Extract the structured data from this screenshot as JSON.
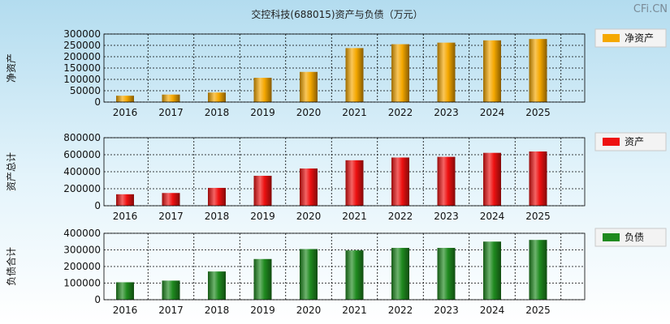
{
  "title": "交控科技(688015)资产与负债（万元）",
  "watermark": "CFi.CN",
  "colors": {
    "net_assets": "#f5a800",
    "total_assets": "#ee1111",
    "liabilities": "#1f8a1f"
  },
  "chart_data": [
    {
      "type": "bar",
      "id": "net-assets",
      "legend": "净资产",
      "ylabel": "净资产",
      "categories": [
        "2016",
        "2017",
        "2018",
        "2019",
        "2020",
        "2021",
        "2022",
        "2023",
        "2024",
        "2025"
      ],
      "values": [
        28000,
        33000,
        42000,
        107000,
        133000,
        238000,
        255000,
        262000,
        272000,
        278000
      ],
      "ylim": [
        0,
        300000
      ],
      "yticks": [
        0,
        50000,
        100000,
        150000,
        200000,
        250000,
        300000
      ],
      "color": "#f5a800"
    },
    {
      "type": "bar",
      "id": "total-assets",
      "legend": "资产",
      "ylabel": "资产总计",
      "categories": [
        "2016",
        "2017",
        "2018",
        "2019",
        "2020",
        "2021",
        "2022",
        "2023",
        "2024",
        "2025"
      ],
      "values": [
        135000,
        150000,
        210000,
        352000,
        438000,
        535000,
        567000,
        575000,
        622000,
        638000
      ],
      "ylim": [
        0,
        800000
      ],
      "yticks": [
        0,
        200000,
        400000,
        600000,
        800000
      ],
      "color": "#ee1111"
    },
    {
      "type": "bar",
      "id": "liabilities",
      "legend": "负债",
      "ylabel": "负债合计",
      "categories": [
        "2016",
        "2017",
        "2018",
        "2019",
        "2020",
        "2021",
        "2022",
        "2023",
        "2024",
        "2025"
      ],
      "values": [
        105000,
        115000,
        170000,
        245000,
        305000,
        297000,
        312000,
        312000,
        350000,
        360000
      ],
      "ylim": [
        0,
        400000
      ],
      "yticks": [
        0,
        100000,
        200000,
        300000,
        400000
      ],
      "color": "#1f8a1f"
    }
  ]
}
